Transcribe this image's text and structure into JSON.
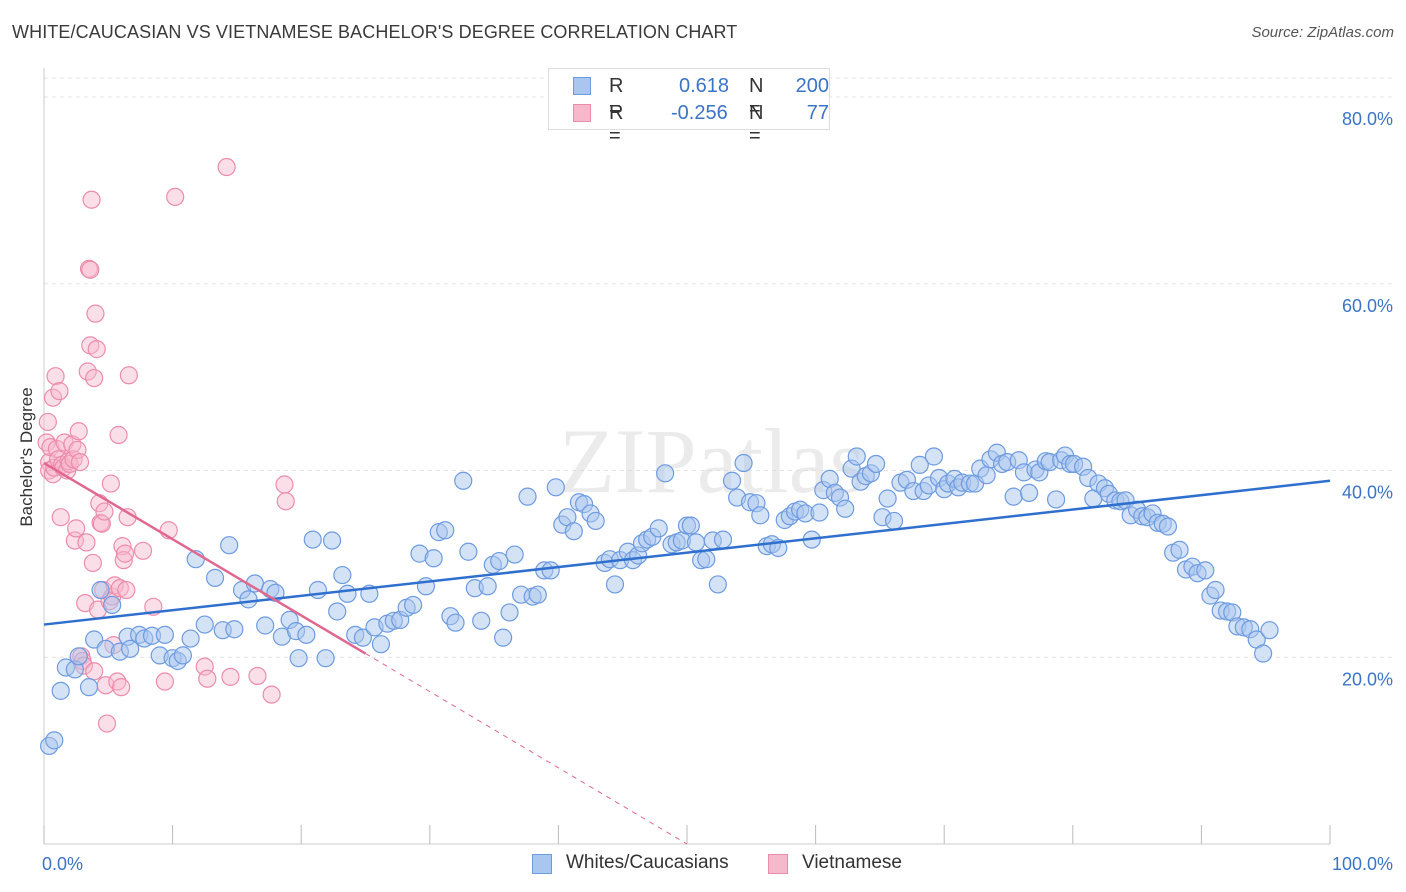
{
  "title": "WHITE/CAUCASIAN VS VIETNAMESE BACHELOR'S DEGREE CORRELATION CHART",
  "source": "Source: ZipAtlas.com",
  "watermark": "ZIPatlas",
  "colors": {
    "blue_fill": "#a9c6ee",
    "blue_stroke": "#6d9be0",
    "blue_line": "#2f6fce",
    "pink_fill": "#f6b8cb",
    "pink_stroke": "#ec8cab",
    "pink_line": "#e0678f",
    "axis_label": "#3b74c6",
    "grid": "#e3e3e3"
  },
  "legend_top": {
    "rows": [
      {
        "r_label": "R =",
        "r_value": "0.618",
        "n_label": "N =",
        "n_value": "200"
      },
      {
        "r_label": "R =",
        "r_value": "-0.256",
        "n_label": "N =",
        "n_value": "77"
      }
    ]
  },
  "legend_bottom": {
    "items": [
      {
        "label": "Whites/Caucasians"
      },
      {
        "label": "Vietnamese"
      }
    ]
  },
  "chart_data": {
    "type": "scatter",
    "title": "WHITE/CAUCASIAN VS VIETNAMESE BACHELOR'S DEGREE CORRELATION CHART",
    "xlabel": "",
    "ylabel": "Bachelor's Degree",
    "xlim": [
      0,
      100
    ],
    "ylim": [
      0,
      83
    ],
    "x_ticks": [
      0,
      10,
      20,
      30,
      40,
      50,
      60,
      70,
      80,
      90,
      100
    ],
    "x_tick_labels": [
      "0.0%",
      "",
      "",
      "",
      "",
      "",
      "",
      "",
      "",
      "",
      "100.0%"
    ],
    "y_ticks": [
      20,
      40,
      60,
      80
    ],
    "y_tick_labels": [
      "20.0%",
      "40.0%",
      "60.0%",
      "80.0%"
    ],
    "grid": true,
    "legend_position": "top-center",
    "series": [
      {
        "name": "Whites/Caucasians",
        "r": 0.618,
        "n": 200,
        "trend": {
          "x": [
            0,
            100
          ],
          "y": [
            23.5,
            38.9
          ]
        },
        "points": [
          [
            0.4,
            10.5
          ],
          [
            0.8,
            11.1
          ],
          [
            1.3,
            16.4
          ],
          [
            1.7,
            18.9
          ],
          [
            2.4,
            18.7
          ],
          [
            2.7,
            20.1
          ],
          [
            3.5,
            16.8
          ],
          [
            3.9,
            21.9
          ],
          [
            4.4,
            27.2
          ],
          [
            4.8,
            20.9
          ],
          [
            5.3,
            25.6
          ],
          [
            5.9,
            20.6
          ],
          [
            6.5,
            22.2
          ],
          [
            6.7,
            20.9
          ],
          [
            7.4,
            22.4
          ],
          [
            7.8,
            22.0
          ],
          [
            8.4,
            22.3
          ],
          [
            9.0,
            20.2
          ],
          [
            9.4,
            22.4
          ],
          [
            10.0,
            19.9
          ],
          [
            10.4,
            19.6
          ],
          [
            10.8,
            20.2
          ],
          [
            11.4,
            22.0
          ],
          [
            11.8,
            30.5
          ],
          [
            12.5,
            23.5
          ],
          [
            13.3,
            28.5
          ],
          [
            13.9,
            22.9
          ],
          [
            14.4,
            32.0
          ],
          [
            14.8,
            23.0
          ],
          [
            15.4,
            27.2
          ],
          [
            15.9,
            26.2
          ],
          [
            16.4,
            27.9
          ],
          [
            17.2,
            23.4
          ],
          [
            17.6,
            27.3
          ],
          [
            18.0,
            26.9
          ],
          [
            18.5,
            22.2
          ],
          [
            19.1,
            24.0
          ],
          [
            19.6,
            22.8
          ],
          [
            19.8,
            19.9
          ],
          [
            20.4,
            22.4
          ],
          [
            20.9,
            32.6
          ],
          [
            21.3,
            27.2
          ],
          [
            21.9,
            19.9
          ],
          [
            22.4,
            32.5
          ],
          [
            22.8,
            24.9
          ],
          [
            23.2,
            28.8
          ],
          [
            23.6,
            26.8
          ],
          [
            24.2,
            22.4
          ],
          [
            24.8,
            22.1
          ],
          [
            25.3,
            26.8
          ],
          [
            25.7,
            23.2
          ],
          [
            26.2,
            21.4
          ],
          [
            26.7,
            23.6
          ],
          [
            27.2,
            23.9
          ],
          [
            27.7,
            24.0
          ],
          [
            28.2,
            25.3
          ],
          [
            28.7,
            25.6
          ],
          [
            29.2,
            31.1
          ],
          [
            29.7,
            27.6
          ],
          [
            30.3,
            30.6
          ],
          [
            30.7,
            33.4
          ],
          [
            31.2,
            33.6
          ],
          [
            31.6,
            24.4
          ],
          [
            32.0,
            23.7
          ],
          [
            32.6,
            38.9
          ],
          [
            33.0,
            31.3
          ],
          [
            33.5,
            27.4
          ],
          [
            34.0,
            23.9
          ],
          [
            34.5,
            27.6
          ],
          [
            34.9,
            29.9
          ],
          [
            35.4,
            30.3
          ],
          [
            35.7,
            22.1
          ],
          [
            36.2,
            24.8
          ],
          [
            36.6,
            31.0
          ],
          [
            37.1,
            26.7
          ],
          [
            37.6,
            37.2
          ],
          [
            38.0,
            26.5
          ],
          [
            38.4,
            26.7
          ],
          [
            38.9,
            29.3
          ],
          [
            39.4,
            29.3
          ],
          [
            39.8,
            38.2
          ],
          [
            40.3,
            34.2
          ],
          [
            40.7,
            35.0
          ],
          [
            41.2,
            33.5
          ],
          [
            41.6,
            36.6
          ],
          [
            42.0,
            36.4
          ],
          [
            42.5,
            35.4
          ],
          [
            42.9,
            34.6
          ],
          [
            43.6,
            30.1
          ],
          [
            44.0,
            30.5
          ],
          [
            44.4,
            27.8
          ],
          [
            44.8,
            30.4
          ],
          [
            45.4,
            31.3
          ],
          [
            45.8,
            30.4
          ],
          [
            46.2,
            30.9
          ],
          [
            46.5,
            32.2
          ],
          [
            46.9,
            32.6
          ],
          [
            47.3,
            32.9
          ],
          [
            47.8,
            33.8
          ],
          [
            48.3,
            39.7
          ],
          [
            48.8,
            32.1
          ],
          [
            49.2,
            32.3
          ],
          [
            49.6,
            32.5
          ],
          [
            50.0,
            34.1
          ],
          [
            50.3,
            34.1
          ],
          [
            50.7,
            32.3
          ],
          [
            51.1,
            30.4
          ],
          [
            51.5,
            30.5
          ],
          [
            52.0,
            32.5
          ],
          [
            52.4,
            27.8
          ],
          [
            52.8,
            32.6
          ],
          [
            53.5,
            38.9
          ],
          [
            53.9,
            37.1
          ],
          [
            54.4,
            40.8
          ],
          [
            54.9,
            36.6
          ],
          [
            55.4,
            36.5
          ],
          [
            55.7,
            35.2
          ],
          [
            56.2,
            31.9
          ],
          [
            56.6,
            32.1
          ],
          [
            57.1,
            31.7
          ],
          [
            57.6,
            34.7
          ],
          [
            58.0,
            35.1
          ],
          [
            58.4,
            35.6
          ],
          [
            58.8,
            35.8
          ],
          [
            59.2,
            35.4
          ],
          [
            59.7,
            32.6
          ],
          [
            60.3,
            35.5
          ],
          [
            60.6,
            37.9
          ],
          [
            61.1,
            39.1
          ],
          [
            61.5,
            37.6
          ],
          [
            61.9,
            37.1
          ],
          [
            62.3,
            35.9
          ],
          [
            62.8,
            40.2
          ],
          [
            63.2,
            41.5
          ],
          [
            63.5,
            38.8
          ],
          [
            63.9,
            39.4
          ],
          [
            64.3,
            39.7
          ],
          [
            64.7,
            40.7
          ],
          [
            65.2,
            35.0
          ],
          [
            65.6,
            37.0
          ],
          [
            66.1,
            34.6
          ],
          [
            66.6,
            38.7
          ],
          [
            67.1,
            39.0
          ],
          [
            67.6,
            37.8
          ],
          [
            68.1,
            40.6
          ],
          [
            68.4,
            37.8
          ],
          [
            68.8,
            38.4
          ],
          [
            69.2,
            41.5
          ],
          [
            69.6,
            39.2
          ],
          [
            70.0,
            38.0
          ],
          [
            70.3,
            38.6
          ],
          [
            70.8,
            39.1
          ],
          [
            71.1,
            38.2
          ],
          [
            71.4,
            38.7
          ],
          [
            72.0,
            38.6
          ],
          [
            72.4,
            38.6
          ],
          [
            72.8,
            40.2
          ],
          [
            73.3,
            39.5
          ],
          [
            73.6,
            41.2
          ],
          [
            74.1,
            41.9
          ],
          [
            74.5,
            40.7
          ],
          [
            74.9,
            40.9
          ],
          [
            75.4,
            37.2
          ],
          [
            75.8,
            41.1
          ],
          [
            76.2,
            39.8
          ],
          [
            76.6,
            37.6
          ],
          [
            77.1,
            40.1
          ],
          [
            77.4,
            39.8
          ],
          [
            77.9,
            41.0
          ],
          [
            78.2,
            40.9
          ],
          [
            78.7,
            36.9
          ],
          [
            79.1,
            41.1
          ],
          [
            79.4,
            41.6
          ],
          [
            79.8,
            40.7
          ],
          [
            80.1,
            40.7
          ],
          [
            80.8,
            40.4
          ],
          [
            81.2,
            39.2
          ],
          [
            81.6,
            37.0
          ],
          [
            82.0,
            38.6
          ],
          [
            82.5,
            38.1
          ],
          [
            82.8,
            37.5
          ],
          [
            83.3,
            36.8
          ],
          [
            83.7,
            36.7
          ],
          [
            84.1,
            36.8
          ],
          [
            84.5,
            35.2
          ],
          [
            85.0,
            35.8
          ],
          [
            85.4,
            35.1
          ],
          [
            85.8,
            35.0
          ],
          [
            86.2,
            35.4
          ],
          [
            86.6,
            34.4
          ],
          [
            87.0,
            34.3
          ],
          [
            87.4,
            34.0
          ],
          [
            87.8,
            31.2
          ],
          [
            88.3,
            31.5
          ],
          [
            88.8,
            29.4
          ],
          [
            89.3,
            29.7
          ],
          [
            89.7,
            29.0
          ],
          [
            90.3,
            29.3
          ],
          [
            90.7,
            26.6
          ],
          [
            91.1,
            27.2
          ],
          [
            91.5,
            25.0
          ],
          [
            92.0,
            24.9
          ],
          [
            92.4,
            24.8
          ],
          [
            92.8,
            23.3
          ],
          [
            93.3,
            23.2
          ],
          [
            93.8,
            23.0
          ],
          [
            94.3,
            21.9
          ],
          [
            94.8,
            20.4
          ],
          [
            95.3,
            22.9
          ]
        ]
      },
      {
        "name": "Vietnamese",
        "r": -0.256,
        "n": 77,
        "trend": {
          "x": [
            0,
            25
          ],
          "y": [
            40.8,
            20.4
          ]
        },
        "trend_extension": {
          "x": [
            25,
            50
          ],
          "y": [
            20.4,
            0
          ]
        },
        "points": [
          [
            0.2,
            43.0
          ],
          [
            0.3,
            45.2
          ],
          [
            0.4,
            40.9
          ],
          [
            0.4,
            40.0
          ],
          [
            0.5,
            42.5
          ],
          [
            0.7,
            39.6
          ],
          [
            0.7,
            47.8
          ],
          [
            0.8,
            40.3
          ],
          [
            0.9,
            50.1
          ],
          [
            1.0,
            42.3
          ],
          [
            1.1,
            41.2
          ],
          [
            1.2,
            48.5
          ],
          [
            1.3,
            35.0
          ],
          [
            1.4,
            40.6
          ],
          [
            1.5,
            40.3
          ],
          [
            1.6,
            43.0
          ],
          [
            1.8,
            40.0
          ],
          [
            1.9,
            41.0
          ],
          [
            2.0,
            40.7
          ],
          [
            2.2,
            42.8
          ],
          [
            2.3,
            41.2
          ],
          [
            2.4,
            32.5
          ],
          [
            2.5,
            33.8
          ],
          [
            2.6,
            42.2
          ],
          [
            2.7,
            44.2
          ],
          [
            2.8,
            40.9
          ],
          [
            2.9,
            20.1
          ],
          [
            3.0,
            19.6
          ],
          [
            3.1,
            19.1
          ],
          [
            3.2,
            25.8
          ],
          [
            3.3,
            32.3
          ],
          [
            3.4,
            50.6
          ],
          [
            3.5,
            61.6
          ],
          [
            3.6,
            53.4
          ],
          [
            3.7,
            69.0
          ],
          [
            3.8,
            30.1
          ],
          [
            3.9,
            49.9
          ],
          [
            4.0,
            56.8
          ],
          [
            4.1,
            53.0
          ],
          [
            4.2,
            25.1
          ],
          [
            4.3,
            36.5
          ],
          [
            4.4,
            34.4
          ],
          [
            4.5,
            34.3
          ],
          [
            4.6,
            27.2
          ],
          [
            4.7,
            35.6
          ],
          [
            4.8,
            17.0
          ],
          [
            4.9,
            12.9
          ],
          [
            5.1,
            26.0
          ],
          [
            5.2,
            38.6
          ],
          [
            5.3,
            26.5
          ],
          [
            5.4,
            21.3
          ],
          [
            5.5,
            27.7
          ],
          [
            5.7,
            17.4
          ],
          [
            5.8,
            43.8
          ],
          [
            5.9,
            27.4
          ],
          [
            6.0,
            16.8
          ],
          [
            6.1,
            31.9
          ],
          [
            6.2,
            30.4
          ],
          [
            6.3,
            31.1
          ],
          [
            6.4,
            27.2
          ],
          [
            6.5,
            35.0
          ],
          [
            6.6,
            50.2
          ],
          [
            7.7,
            31.4
          ],
          [
            8.5,
            25.4
          ],
          [
            9.4,
            17.4
          ],
          [
            9.7,
            33.6
          ],
          [
            10.2,
            69.3
          ],
          [
            12.5,
            19.0
          ],
          [
            12.7,
            17.7
          ],
          [
            14.2,
            72.5
          ],
          [
            14.5,
            17.9
          ],
          [
            16.6,
            18.0
          ],
          [
            17.7,
            16.0
          ],
          [
            18.7,
            38.5
          ],
          [
            18.8,
            36.7
          ],
          [
            3.6,
            61.5
          ],
          [
            3.9,
            18.5
          ]
        ]
      }
    ]
  }
}
